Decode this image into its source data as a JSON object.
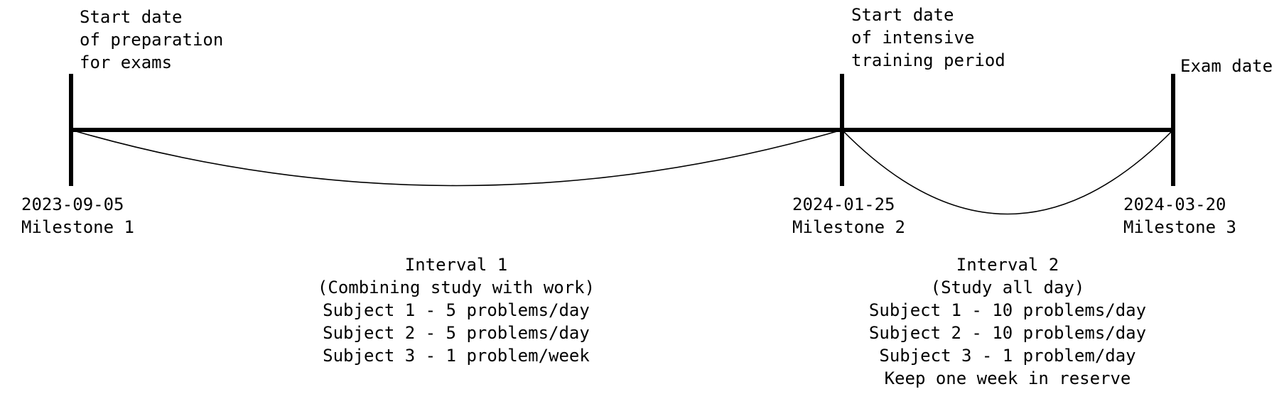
{
  "milestones": [
    {
      "top_label": [
        "Start date",
        "of preparation",
        "for exams"
      ],
      "date": "2023-09-05",
      "name": "Milestone 1"
    },
    {
      "top_label": [
        "Start date",
        "of intensive",
        "training period"
      ],
      "date": "2024-01-25",
      "name": "Milestone 2"
    },
    {
      "top_label": [
        "Exam date"
      ],
      "date": "2024-03-20",
      "name": "Milestone 3"
    }
  ],
  "intervals": [
    {
      "lines": [
        "Interval 1",
        "(Combining study with work)",
        "Subject 1 - 5 problems/day",
        "Subject 2 - 5 problems/day",
        "Subject 3 - 1 problem/week"
      ]
    },
    {
      "lines": [
        "Interval 2",
        "(Study all day)",
        "Subject 1 - 10 problems/day",
        "Subject 2 - 10 problems/day",
        "Subject 3 - 1 problem/day",
        "Keep one week in reserve"
      ]
    }
  ],
  "colors": {
    "ink": "#000000",
    "background": "#ffffff"
  }
}
